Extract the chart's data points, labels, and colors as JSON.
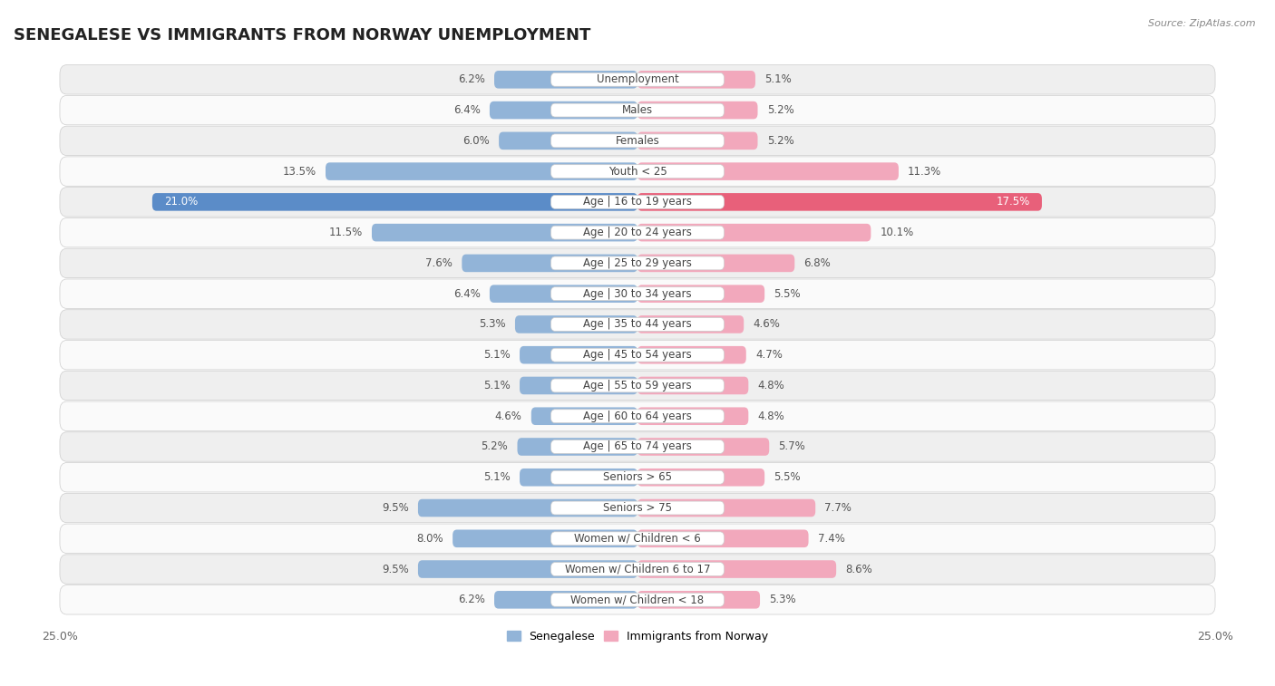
{
  "title": "SENEGALESE VS IMMIGRANTS FROM NORWAY UNEMPLOYMENT",
  "source": "Source: ZipAtlas.com",
  "categories": [
    "Unemployment",
    "Males",
    "Females",
    "Youth < 25",
    "Age | 16 to 19 years",
    "Age | 20 to 24 years",
    "Age | 25 to 29 years",
    "Age | 30 to 34 years",
    "Age | 35 to 44 years",
    "Age | 45 to 54 years",
    "Age | 55 to 59 years",
    "Age | 60 to 64 years",
    "Age | 65 to 74 years",
    "Seniors > 65",
    "Seniors > 75",
    "Women w/ Children < 6",
    "Women w/ Children 6 to 17",
    "Women w/ Children < 18"
  ],
  "senegalese": [
    6.2,
    6.4,
    6.0,
    13.5,
    21.0,
    11.5,
    7.6,
    6.4,
    5.3,
    5.1,
    5.1,
    4.6,
    5.2,
    5.1,
    9.5,
    8.0,
    9.5,
    6.2
  ],
  "norway": [
    5.1,
    5.2,
    5.2,
    11.3,
    17.5,
    10.1,
    6.8,
    5.5,
    4.6,
    4.7,
    4.8,
    4.8,
    5.7,
    5.5,
    7.7,
    7.4,
    8.6,
    5.3
  ],
  "senegalese_color": "#92b4d8",
  "norway_color": "#f2a8bc",
  "highlight_senegalese_color": "#5b8cc8",
  "highlight_norway_color": "#e8607a",
  "highlight_row": 4,
  "xlim": 25.0,
  "bar_height": 0.58,
  "row_bg_even": "#efefef",
  "row_bg_odd": "#fafafa",
  "row_border": "#dddddd",
  "legend_senegalese": "Senegalese",
  "legend_norway": "Immigrants from Norway",
  "title_fontsize": 13,
  "label_fontsize": 8.5,
  "value_fontsize": 8.5
}
